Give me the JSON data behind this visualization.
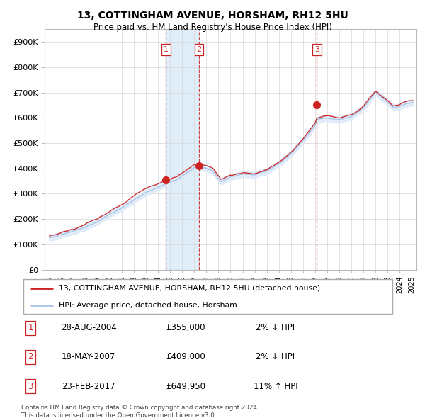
{
  "title": "13, COTTINGHAM AVENUE, HORSHAM, RH12 5HU",
  "subtitle": "Price paid vs. HM Land Registry's House Price Index (HPI)",
  "hpi_label": "HPI: Average price, detached house, Horsham",
  "property_label": "13, COTTINGHAM AVENUE, HORSHAM, RH12 5HU (detached house)",
  "ylabel_ticks": [
    "£0",
    "£100K",
    "£200K",
    "£300K",
    "£400K",
    "£500K",
    "£600K",
    "£700K",
    "£800K",
    "£900K"
  ],
  "ytick_vals": [
    0,
    100000,
    200000,
    300000,
    400000,
    500000,
    600000,
    700000,
    800000,
    900000
  ],
  "sale_points": [
    {
      "label": "1",
      "year": 2004.66,
      "price": 355000
    },
    {
      "label": "2",
      "year": 2007.38,
      "price": 409000
    },
    {
      "label": "3",
      "year": 2017.15,
      "price": 649950
    }
  ],
  "table_rows": [
    {
      "num": "1",
      "date": "28-AUG-2004",
      "price": "£355,000",
      "pct": "2% ↓ HPI"
    },
    {
      "num": "2",
      "date": "18-MAY-2007",
      "price": "£409,000",
      "pct": "2% ↓ HPI"
    },
    {
      "num": "3",
      "date": "23-FEB-2017",
      "price": "£649,950",
      "pct": "11% ↑ HPI"
    }
  ],
  "footer": "Contains HM Land Registry data © Crown copyright and database right 2024.\nThis data is licensed under the Open Government Licence v3.0.",
  "hpi_color": "#aac4e8",
  "hpi_fill_color": "#ddeaf8",
  "price_color": "#cc2222",
  "dashed_color": "#cc2222",
  "background_color": "#ffffff",
  "grid_color": "#d8d8d8",
  "sale_shade_color": "#d8eaf8"
}
